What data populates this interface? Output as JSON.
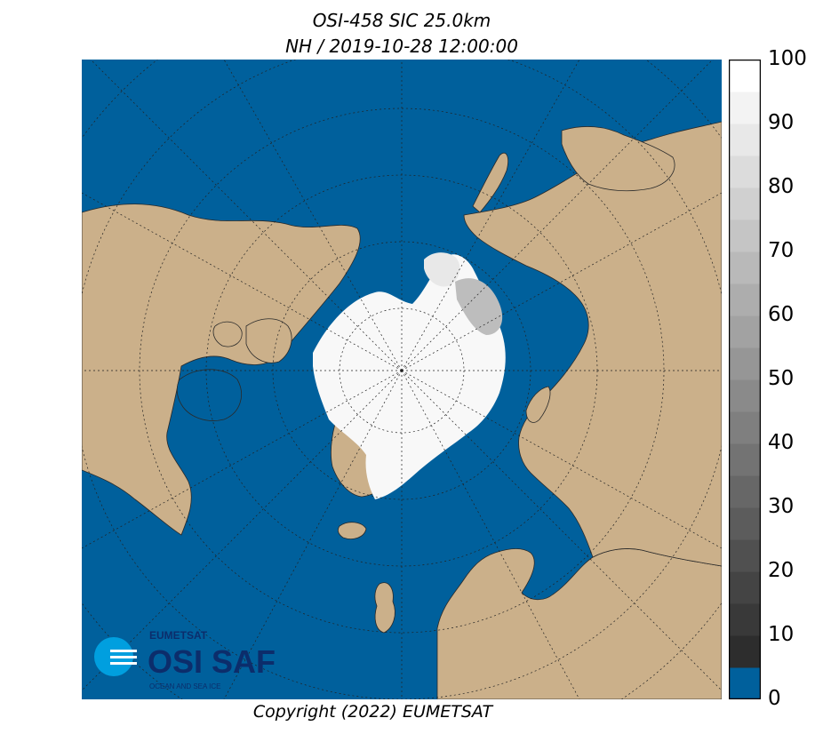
{
  "title_line1": "OSI-458 SIC 25.0km",
  "title_line2": "NH / 2019-10-28 12:00:00",
  "copyright": "Copyright (2022)  EUMETSAT",
  "colorbar": {
    "min": 0,
    "max": 100,
    "ticks": [
      "100",
      "90",
      "80",
      "70",
      "60",
      "50",
      "40",
      "30",
      "20",
      "10",
      "0"
    ],
    "low_color": "#00609c"
  },
  "colors": {
    "ocean": "#00609c",
    "land": "#cbb08a",
    "ice": "#ffffff",
    "logo": "#0c2d6b",
    "logo_accent": "#009fdf"
  },
  "logo": {
    "org": "EUMETSAT",
    "name": "OSI SAF",
    "tagline": "OCEAN AND SEA ICE"
  }
}
